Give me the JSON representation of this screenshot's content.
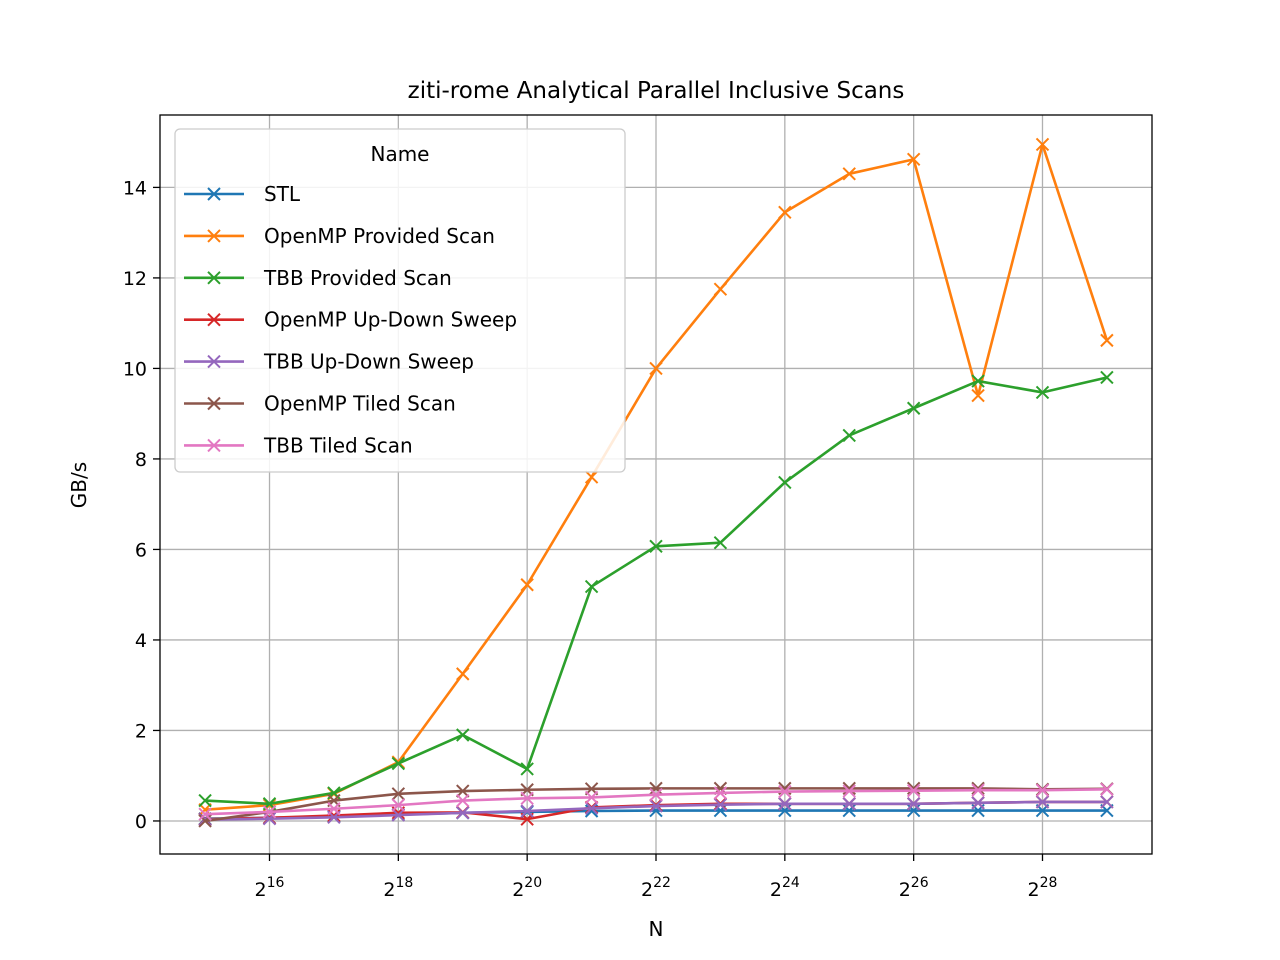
{
  "chart_data": {
    "type": "line",
    "title": "ziti-rome Analytical Parallel Inclusive Scans",
    "xlabel": "N",
    "ylabel": "GB/s",
    "x_scale": "log2",
    "x": [
      15,
      16,
      17,
      18,
      19,
      20,
      21,
      22,
      23,
      24,
      25,
      26,
      27,
      28,
      29
    ],
    "xlim": [
      14.3,
      29.7
    ],
    "ylim": [
      -0.73,
      15.6
    ],
    "x_ticks": [
      {
        "base": "2",
        "exp": "16",
        "value": 16
      },
      {
        "base": "2",
        "exp": "18",
        "value": 18
      },
      {
        "base": "2",
        "exp": "20",
        "value": 20
      },
      {
        "base": "2",
        "exp": "22",
        "value": 22
      },
      {
        "base": "2",
        "exp": "24",
        "value": 24
      },
      {
        "base": "2",
        "exp": "26",
        "value": 26
      },
      {
        "base": "2",
        "exp": "28",
        "value": 28
      }
    ],
    "y_ticks": [
      {
        "label": "0",
        "value": 0
      },
      {
        "label": "2",
        "value": 2
      },
      {
        "label": "4",
        "value": 4
      },
      {
        "label": "6",
        "value": 6
      },
      {
        "label": "8",
        "value": 8
      },
      {
        "label": "10",
        "value": 10
      },
      {
        "label": "12",
        "value": 12
      },
      {
        "label": "14",
        "value": 14
      }
    ],
    "grid": true,
    "marker": "x",
    "legend": {
      "title": "Name",
      "placement": "upper-left"
    },
    "series": [
      {
        "name": "STL",
        "color": "#1f77b4",
        "values": [
          0.05,
          0.07,
          0.1,
          0.14,
          0.18,
          0.2,
          0.22,
          0.23,
          0.23,
          0.23,
          0.23,
          0.23,
          0.23,
          0.23,
          0.23
        ]
      },
      {
        "name": "OpenMP Provided Scan",
        "color": "#ff7f0e",
        "values": [
          0.25,
          0.35,
          0.6,
          1.3,
          3.25,
          5.22,
          7.6,
          10.0,
          11.75,
          13.45,
          14.3,
          14.62,
          9.4,
          14.95,
          10.62
        ]
      },
      {
        "name": "TBB Provided Scan",
        "color": "#2ca02c",
        "values": [
          0.45,
          0.38,
          0.62,
          1.27,
          1.9,
          1.15,
          5.18,
          6.07,
          6.15,
          7.48,
          8.52,
          9.12,
          9.72,
          9.47,
          9.8
        ]
      },
      {
        "name": "OpenMP Up-Down Sweep",
        "color": "#d62728",
        "values": [
          0.04,
          0.07,
          0.12,
          0.18,
          0.19,
          0.04,
          0.3,
          0.35,
          0.38,
          0.38,
          0.38,
          0.38,
          0.4,
          0.42,
          0.42
        ]
      },
      {
        "name": "TBB Up-Down Sweep",
        "color": "#9467bd",
        "values": [
          0.03,
          0.05,
          0.08,
          0.13,
          0.18,
          0.22,
          0.28,
          0.33,
          0.36,
          0.38,
          0.38,
          0.38,
          0.4,
          0.42,
          0.42
        ]
      },
      {
        "name": "OpenMP Tiled Scan",
        "color": "#8c564b",
        "values": [
          0.0,
          0.2,
          0.45,
          0.6,
          0.66,
          0.69,
          0.71,
          0.72,
          0.72,
          0.72,
          0.72,
          0.72,
          0.72,
          0.7,
          0.71
        ]
      },
      {
        "name": "TBB Tiled Scan",
        "color": "#e377c2",
        "values": [
          0.15,
          0.2,
          0.27,
          0.35,
          0.45,
          0.5,
          0.52,
          0.58,
          0.62,
          0.65,
          0.66,
          0.67,
          0.68,
          0.68,
          0.7
        ]
      }
    ]
  }
}
